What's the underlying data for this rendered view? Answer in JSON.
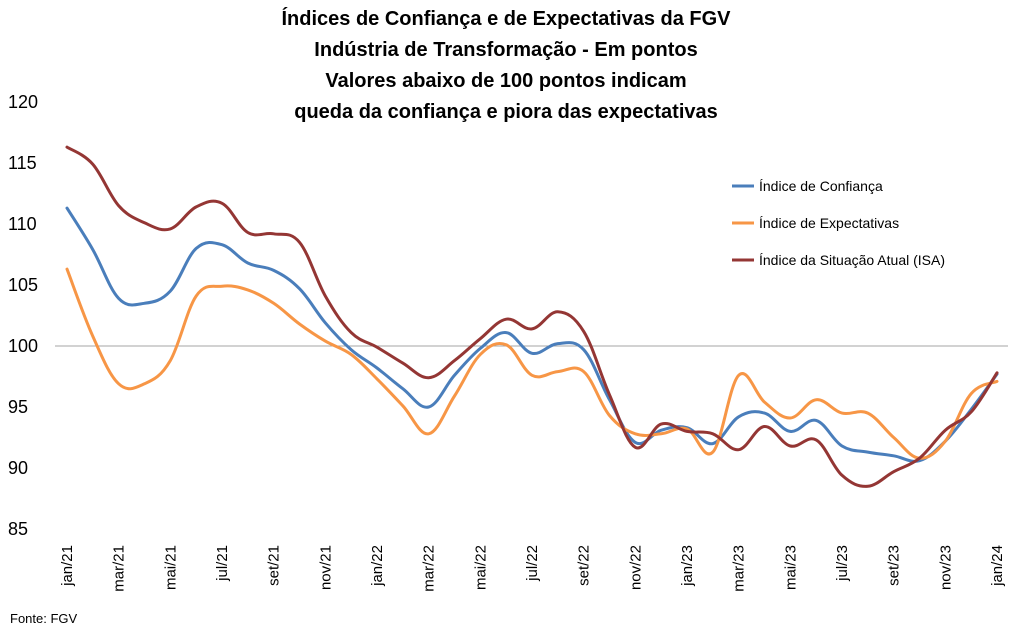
{
  "chart_data": {
    "type": "line",
    "title_lines": [
      "Índices de Confiança e de Expectativas da FGV",
      "Indústria de Transformação - Em pontos",
      "Valores abaixo de 100 pontos indicam",
      "queda da confiança e piora das expectativas"
    ],
    "x": [
      "jan/21",
      "fev/21",
      "mar/21",
      "abr/21",
      "mai/21",
      "jun/21",
      "jul/21",
      "ago/21",
      "set/21",
      "out/21",
      "nov/21",
      "dez/21",
      "jan/22",
      "fev/22",
      "mar/22",
      "abr/22",
      "mai/22",
      "jun/22",
      "jul/22",
      "ago/22",
      "set/22",
      "out/22",
      "nov/22",
      "dez/22",
      "jan/23",
      "fev/23",
      "mar/23",
      "abr/23",
      "mai/23",
      "jun/23",
      "jul/23",
      "ago/23",
      "set/23",
      "out/23",
      "nov/23",
      "dez/23",
      "jan/24"
    ],
    "x_tick_labels": [
      "jan/21",
      "mar/21",
      "mai/21",
      "jul/21",
      "set/21",
      "nov/21",
      "jan/22",
      "mar/22",
      "mai/22",
      "jul/22",
      "set/22",
      "nov/22",
      "jan/23",
      "mar/23",
      "mai/23",
      "jul/23",
      "set/23",
      "nov/23",
      "jan/24"
    ],
    "y_ticks": [
      85,
      90,
      95,
      100,
      105,
      110,
      115,
      120
    ],
    "ylim": [
      85,
      120
    ],
    "reference_line": 100,
    "series": [
      {
        "name": "Índice de Confiança",
        "color": "#4a7ebb",
        "values": [
          111.3,
          107.9,
          103.9,
          103.5,
          104.5,
          108.0,
          108.3,
          106.8,
          106.2,
          104.7,
          101.9,
          99.7,
          98.2,
          96.5,
          95.0,
          97.6,
          99.8,
          101.1,
          99.4,
          100.2,
          99.7,
          95.6,
          92.1,
          93.1,
          93.3,
          92.0,
          94.2,
          94.5,
          93.0,
          93.9,
          91.8,
          91.3,
          91.0,
          90.6,
          92.2,
          94.8,
          97.7
        ]
      },
      {
        "name": "Índice de Expectativas",
        "color": "#f79646",
        "values": [
          106.3,
          100.8,
          96.9,
          96.9,
          98.8,
          104.1,
          104.9,
          104.6,
          103.5,
          101.8,
          100.4,
          99.3,
          97.3,
          95.1,
          92.8,
          95.9,
          99.3,
          100.1,
          97.6,
          97.9,
          97.9,
          94.3,
          92.8,
          92.8,
          93.2,
          91.3,
          97.6,
          95.4,
          94.1,
          95.6,
          94.5,
          94.5,
          92.5,
          90.8,
          92.2,
          96.1,
          97.1
        ]
      },
      {
        "name": "Índice da Situação Atual (ISA)",
        "color": "#943634",
        "values": [
          116.3,
          114.9,
          111.5,
          110.1,
          109.6,
          111.4,
          111.7,
          109.3,
          109.2,
          108.5,
          104.1,
          101.1,
          99.9,
          98.6,
          97.4,
          98.8,
          100.6,
          102.2,
          101.4,
          102.8,
          101.2,
          96.0,
          91.7,
          93.6,
          93.0,
          92.8,
          91.5,
          93.4,
          91.8,
          92.3,
          89.4,
          88.5,
          89.7,
          90.8,
          93.1,
          94.6,
          97.8
        ]
      }
    ],
    "legend_position": "right"
  },
  "source": "Fonte: FGV"
}
